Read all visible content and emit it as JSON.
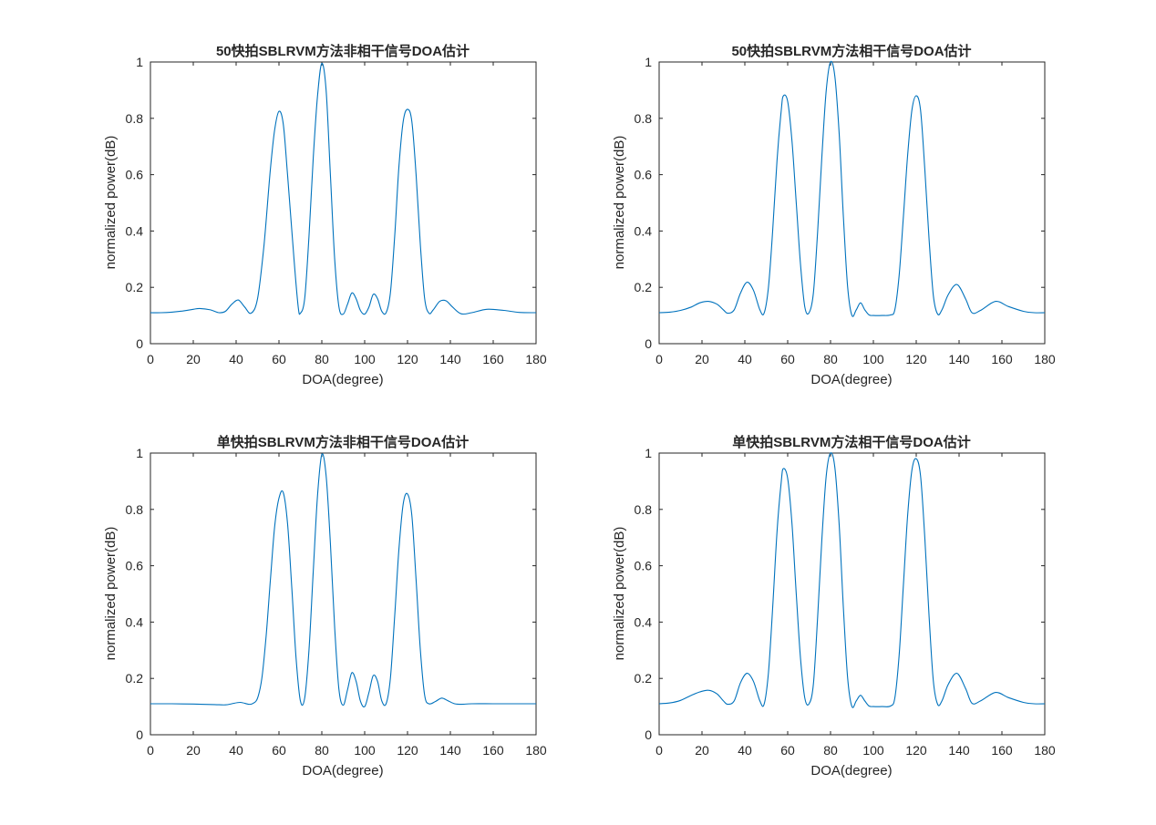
{
  "figure": {
    "background": "#ffffff",
    "line_color": "#0072bd",
    "axis_color": "#262626"
  },
  "chart_data": [
    {
      "type": "line",
      "title": "50快拍SBLRVM方法非相干信号DOA估计",
      "xlabel": "DOA(degree)",
      "ylabel": "normalized power(dB)",
      "xlim": [
        0,
        180
      ],
      "ylim": [
        0,
        1
      ],
      "xticks": [
        0,
        20,
        40,
        60,
        80,
        100,
        120,
        140,
        160,
        180
      ],
      "yticks": [
        0,
        0.2,
        0.4,
        0.6,
        0.8,
        1
      ],
      "ytick_labels": [
        "0",
        "0.2",
        "0.4",
        "0.6",
        "0.8",
        "1"
      ],
      "grid": false,
      "series": [
        {
          "x": [
            0,
            5,
            10,
            15,
            20,
            23,
            28,
            32,
            35,
            38,
            41,
            44,
            47,
            50,
            53,
            56,
            58,
            60,
            62,
            64,
            67,
            69,
            70,
            72,
            74,
            76,
            78,
            80,
            82,
            84,
            86,
            88,
            90,
            92,
            94,
            96,
            98,
            100,
            102,
            104,
            106,
            108,
            110,
            112,
            114,
            116,
            118,
            120,
            122,
            124,
            126,
            128,
            130,
            132,
            135,
            138,
            141,
            145,
            150,
            157,
            165,
            172,
            180
          ],
          "y": [
            0.11,
            0.11,
            0.112,
            0.116,
            0.122,
            0.125,
            0.12,
            0.11,
            0.115,
            0.14,
            0.155,
            0.13,
            0.108,
            0.16,
            0.35,
            0.62,
            0.76,
            0.825,
            0.78,
            0.6,
            0.3,
            0.13,
            0.108,
            0.16,
            0.38,
            0.66,
            0.88,
            0.995,
            0.9,
            0.6,
            0.3,
            0.13,
            0.105,
            0.14,
            0.18,
            0.16,
            0.118,
            0.105,
            0.13,
            0.175,
            0.16,
            0.115,
            0.11,
            0.18,
            0.38,
            0.63,
            0.79,
            0.832,
            0.79,
            0.6,
            0.35,
            0.16,
            0.108,
            0.12,
            0.15,
            0.152,
            0.13,
            0.106,
            0.11,
            0.122,
            0.118,
            0.111,
            0.11
          ]
        }
      ]
    },
    {
      "type": "line",
      "title": "50快拍SBLRVM方法相干信号DOA估计",
      "xlabel": "DOA(degree)",
      "ylabel": "normalized power(dB)",
      "xlim": [
        0,
        180
      ],
      "ylim": [
        0,
        1
      ],
      "xticks": [
        0,
        20,
        40,
        60,
        80,
        100,
        120,
        140,
        160,
        180
      ],
      "yticks": [
        0,
        0.2,
        0.4,
        0.6,
        0.8,
        1
      ],
      "ytick_labels": [
        "0",
        "0.2",
        "0.4",
        "0.6",
        "0.8",
        "1"
      ],
      "grid": false,
      "series": [
        {
          "x": [
            0,
            5,
            10,
            15,
            19,
            23,
            27,
            30,
            32,
            35,
            38,
            41,
            44,
            47,
            49,
            51,
            53,
            55,
            57,
            58,
            60,
            62,
            64,
            66,
            68,
            70,
            72,
            74,
            76,
            78,
            80,
            82,
            84,
            86,
            88,
            90,
            92,
            94,
            96,
            98,
            100,
            104,
            108,
            110,
            112,
            114,
            116,
            118,
            120,
            122,
            124,
            126,
            128,
            130,
            132,
            135,
            139,
            143,
            146,
            150,
            157,
            163,
            170,
            175,
            180
          ],
          "y": [
            0.11,
            0.112,
            0.118,
            0.13,
            0.145,
            0.15,
            0.14,
            0.12,
            0.108,
            0.12,
            0.18,
            0.218,
            0.19,
            0.12,
            0.108,
            0.2,
            0.4,
            0.65,
            0.83,
            0.88,
            0.86,
            0.72,
            0.5,
            0.28,
            0.13,
            0.11,
            0.18,
            0.4,
            0.67,
            0.9,
            1.0,
            0.95,
            0.75,
            0.45,
            0.2,
            0.1,
            0.12,
            0.145,
            0.12,
            0.102,
            0.1,
            0.1,
            0.102,
            0.12,
            0.24,
            0.45,
            0.67,
            0.83,
            0.88,
            0.83,
            0.62,
            0.37,
            0.17,
            0.105,
            0.12,
            0.175,
            0.21,
            0.16,
            0.11,
            0.118,
            0.15,
            0.132,
            0.115,
            0.11,
            0.11
          ]
        }
      ]
    },
    {
      "type": "line",
      "title": "单快拍SBLRVM方法非相干信号DOA估计",
      "xlabel": "DOA(degree)",
      "ylabel": "normalized power(dB)",
      "xlim": [
        0,
        180
      ],
      "ylim": [
        0,
        1
      ],
      "xticks": [
        0,
        20,
        40,
        60,
        80,
        100,
        120,
        140,
        160,
        180
      ],
      "yticks": [
        0,
        0.2,
        0.4,
        0.6,
        0.8,
        1
      ],
      "ytick_labels": [
        "0",
        "0.2",
        "0.4",
        "0.6",
        "0.8",
        "1"
      ],
      "grid": false,
      "series": [
        {
          "x": [
            0,
            10,
            20,
            30,
            35,
            38,
            42,
            46,
            48,
            50,
            52,
            54,
            56,
            58,
            60,
            62,
            64,
            66,
            68,
            70,
            72,
            74,
            76,
            78,
            80,
            82,
            84,
            86,
            88,
            90,
            92,
            94,
            96,
            98,
            100,
            102,
            104,
            106,
            108,
            110,
            112,
            114,
            116,
            118,
            120,
            122,
            124,
            126,
            128,
            130,
            133,
            136,
            139,
            142,
            145,
            150,
            160,
            170,
            180
          ],
          "y": [
            0.11,
            0.11,
            0.109,
            0.107,
            0.106,
            0.11,
            0.115,
            0.108,
            0.112,
            0.13,
            0.2,
            0.35,
            0.55,
            0.74,
            0.84,
            0.86,
            0.75,
            0.52,
            0.27,
            0.12,
            0.13,
            0.3,
            0.58,
            0.85,
            0.995,
            0.92,
            0.68,
            0.38,
            0.16,
            0.105,
            0.16,
            0.22,
            0.19,
            0.12,
            0.1,
            0.15,
            0.21,
            0.19,
            0.12,
            0.11,
            0.2,
            0.42,
            0.66,
            0.82,
            0.855,
            0.78,
            0.55,
            0.3,
            0.14,
            0.11,
            0.118,
            0.13,
            0.12,
            0.11,
            0.108,
            0.11,
            0.11,
            0.11,
            0.11
          ]
        }
      ]
    },
    {
      "type": "line",
      "title": "单快拍SBLRVM方法相干信号DOA估计",
      "xlabel": "DOA(degree)",
      "ylabel": "normalized power(dB)",
      "xlim": [
        0,
        180
      ],
      "ylim": [
        0,
        1
      ],
      "xticks": [
        0,
        20,
        40,
        60,
        80,
        100,
        120,
        140,
        160,
        180
      ],
      "yticks": [
        0,
        0.2,
        0.4,
        0.6,
        0.8,
        1
      ],
      "ytick_labels": [
        "0",
        "0.2",
        "0.4",
        "0.6",
        "0.8",
        "1"
      ],
      "grid": false,
      "series": [
        {
          "x": [
            0,
            5,
            10,
            15,
            19,
            23,
            27,
            30,
            32,
            35,
            38,
            41,
            44,
            47,
            49,
            51,
            53,
            55,
            57,
            58,
            60,
            62,
            64,
            66,
            68,
            70,
            72,
            74,
            76,
            78,
            80,
            82,
            84,
            86,
            88,
            90,
            92,
            94,
            96,
            98,
            100,
            104,
            108,
            110,
            112,
            114,
            116,
            118,
            120,
            122,
            124,
            126,
            128,
            130,
            132,
            135,
            139,
            143,
            146,
            150,
            157,
            163,
            170,
            175,
            180
          ],
          "y": [
            0.11,
            0.113,
            0.122,
            0.14,
            0.152,
            0.158,
            0.145,
            0.12,
            0.108,
            0.12,
            0.185,
            0.218,
            0.19,
            0.12,
            0.108,
            0.22,
            0.45,
            0.72,
            0.9,
            0.945,
            0.91,
            0.75,
            0.5,
            0.27,
            0.13,
            0.11,
            0.18,
            0.42,
            0.7,
            0.92,
            1.0,
            0.95,
            0.75,
            0.45,
            0.2,
            0.1,
            0.12,
            0.14,
            0.12,
            0.102,
            0.1,
            0.1,
            0.102,
            0.13,
            0.28,
            0.53,
            0.78,
            0.94,
            0.98,
            0.92,
            0.7,
            0.42,
            0.19,
            0.108,
            0.12,
            0.18,
            0.218,
            0.165,
            0.112,
            0.12,
            0.15,
            0.132,
            0.115,
            0.11,
            0.11
          ]
        }
      ]
    }
  ]
}
